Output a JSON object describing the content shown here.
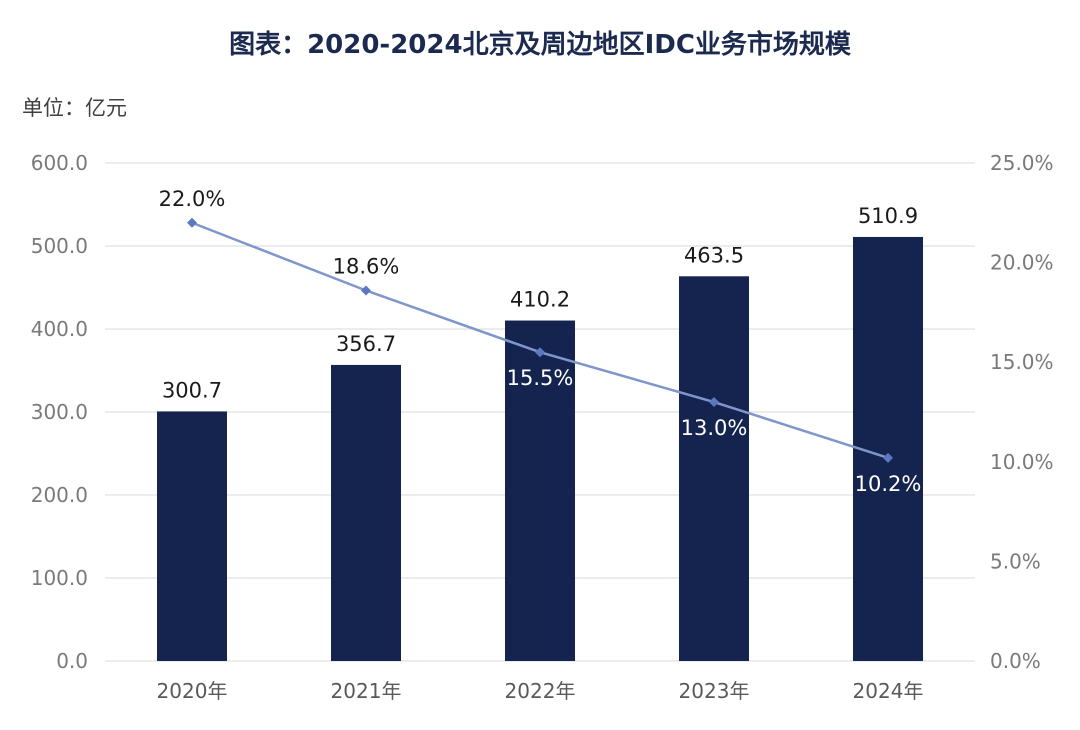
{
  "chart_title": "图表：2020-2024北京及周边地区IDC业务市场规模",
  "unit_label": "单位：亿元",
  "chart_data": {
    "type": "bar",
    "title": "图表：2020-2024北京及周边地区IDC业务市场规模",
    "categories": [
      "2020年",
      "2021年",
      "2022年",
      "2023年",
      "2024年"
    ],
    "series": [
      {
        "type": "bar",
        "axis": "left",
        "values": [
          300.7,
          356.7,
          410.2,
          463.5,
          510.9
        ],
        "labels": [
          "300.7",
          "356.7",
          "410.2",
          "463.5",
          "510.9"
        ],
        "color": "#15244f"
      },
      {
        "type": "line",
        "axis": "right",
        "values": [
          22.0,
          18.6,
          15.5,
          13.0,
          10.2
        ],
        "labels": [
          "22.0%",
          "18.6%",
          "15.5%",
          "13.0%",
          "10.2%"
        ],
        "color": "#7f96cc"
      }
    ],
    "y_left": {
      "range": [
        0,
        600
      ],
      "ticks": [
        "0.0",
        "100.0",
        "200.0",
        "300.0",
        "400.0",
        "500.0",
        "600.0"
      ]
    },
    "y_right": {
      "range": [
        0,
        25
      ],
      "ticks": [
        "0.0%",
        "5.0%",
        "10.0%",
        "15.0%",
        "20.0%",
        "25.0%"
      ]
    },
    "grid": true,
    "legend": "none"
  }
}
